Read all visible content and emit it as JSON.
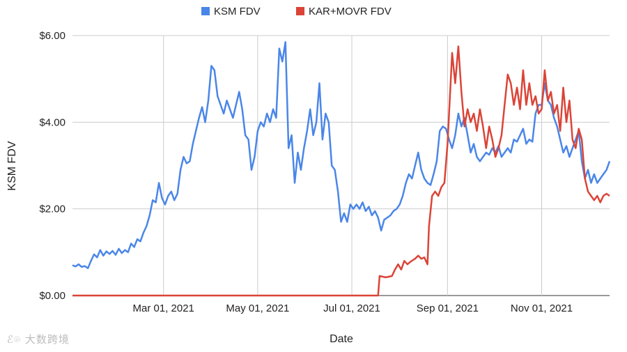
{
  "chart_data": {
    "type": "line",
    "title": "",
    "xlabel": "Date",
    "ylabel": "KSM FDV",
    "ylim": [
      0,
      6
    ],
    "y_ticks": [
      {
        "value": 0,
        "label": "$0.00"
      },
      {
        "value": 2,
        "label": "$2.00"
      },
      {
        "value": 4,
        "label": "$4.00"
      },
      {
        "value": 6,
        "label": "$6.00"
      }
    ],
    "xlim": [
      "2021-01-01",
      "2021-12-15"
    ],
    "x_ticks": [
      {
        "date": "2021-03-01",
        "label": "Mar 01, 2021"
      },
      {
        "date": "2021-05-01",
        "label": "May 01, 2021"
      },
      {
        "date": "2021-07-01",
        "label": "Jul 01, 2021"
      },
      {
        "date": "2021-09-01",
        "label": "Sep 01, 2021"
      },
      {
        "date": "2021-11-01",
        "label": "Nov 01, 2021"
      }
    ],
    "grid": true,
    "legend_position": "top",
    "series": [
      {
        "name": "KSM FDV",
        "color": "#4a86e8",
        "points": [
          [
            "2021-01-01",
            0.7
          ],
          [
            "2021-01-03",
            0.67
          ],
          [
            "2021-01-05",
            0.72
          ],
          [
            "2021-01-07",
            0.66
          ],
          [
            "2021-01-09",
            0.68
          ],
          [
            "2021-01-11",
            0.63
          ],
          [
            "2021-01-13",
            0.8
          ],
          [
            "2021-01-15",
            0.95
          ],
          [
            "2021-01-17",
            0.88
          ],
          [
            "2021-01-19",
            1.05
          ],
          [
            "2021-01-21",
            0.92
          ],
          [
            "2021-01-23",
            1.02
          ],
          [
            "2021-01-25",
            0.96
          ],
          [
            "2021-01-27",
            1.03
          ],
          [
            "2021-01-29",
            0.94
          ],
          [
            "2021-01-31",
            1.08
          ],
          [
            "2021-02-02",
            0.98
          ],
          [
            "2021-02-04",
            1.05
          ],
          [
            "2021-02-06",
            1.0
          ],
          [
            "2021-02-08",
            1.2
          ],
          [
            "2021-02-10",
            1.12
          ],
          [
            "2021-02-12",
            1.3
          ],
          [
            "2021-02-14",
            1.25
          ],
          [
            "2021-02-16",
            1.45
          ],
          [
            "2021-02-18",
            1.6
          ],
          [
            "2021-02-20",
            1.85
          ],
          [
            "2021-02-22",
            2.2
          ],
          [
            "2021-02-24",
            2.15
          ],
          [
            "2021-02-26",
            2.6
          ],
          [
            "2021-02-28",
            2.25
          ],
          [
            "2021-03-02",
            2.1
          ],
          [
            "2021-03-04",
            2.3
          ],
          [
            "2021-03-06",
            2.4
          ],
          [
            "2021-03-08",
            2.2
          ],
          [
            "2021-03-10",
            2.35
          ],
          [
            "2021-03-12",
            2.9
          ],
          [
            "2021-03-14",
            3.2
          ],
          [
            "2021-03-16",
            3.05
          ],
          [
            "2021-03-18",
            3.1
          ],
          [
            "2021-03-20",
            3.5
          ],
          [
            "2021-03-22",
            3.8
          ],
          [
            "2021-03-24",
            4.1
          ],
          [
            "2021-03-26",
            4.35
          ],
          [
            "2021-03-28",
            4.0
          ],
          [
            "2021-03-30",
            4.5
          ],
          [
            "2021-04-01",
            5.3
          ],
          [
            "2021-04-03",
            5.2
          ],
          [
            "2021-04-05",
            4.6
          ],
          [
            "2021-04-07",
            4.4
          ],
          [
            "2021-04-09",
            4.2
          ],
          [
            "2021-04-11",
            4.5
          ],
          [
            "2021-04-13",
            4.3
          ],
          [
            "2021-04-15",
            4.1
          ],
          [
            "2021-04-17",
            4.4
          ],
          [
            "2021-04-19",
            4.7
          ],
          [
            "2021-04-21",
            4.3
          ],
          [
            "2021-04-23",
            3.7
          ],
          [
            "2021-04-25",
            3.6
          ],
          [
            "2021-04-27",
            2.9
          ],
          [
            "2021-04-29",
            3.2
          ],
          [
            "2021-05-01",
            3.8
          ],
          [
            "2021-05-03",
            4.0
          ],
          [
            "2021-05-05",
            3.9
          ],
          [
            "2021-05-07",
            4.2
          ],
          [
            "2021-05-09",
            4.0
          ],
          [
            "2021-05-11",
            4.3
          ],
          [
            "2021-05-13",
            4.1
          ],
          [
            "2021-05-15",
            5.7
          ],
          [
            "2021-05-17",
            5.4
          ],
          [
            "2021-05-19",
            5.85
          ],
          [
            "2021-05-21",
            3.4
          ],
          [
            "2021-05-23",
            3.7
          ],
          [
            "2021-05-25",
            2.6
          ],
          [
            "2021-05-27",
            3.3
          ],
          [
            "2021-05-29",
            2.9
          ],
          [
            "2021-05-31",
            3.4
          ],
          [
            "2021-06-02",
            3.8
          ],
          [
            "2021-06-04",
            4.3
          ],
          [
            "2021-06-06",
            3.7
          ],
          [
            "2021-06-08",
            4.0
          ],
          [
            "2021-06-10",
            4.9
          ],
          [
            "2021-06-12",
            3.6
          ],
          [
            "2021-06-14",
            4.2
          ],
          [
            "2021-06-16",
            4.0
          ],
          [
            "2021-06-18",
            3.0
          ],
          [
            "2021-06-20",
            2.9
          ],
          [
            "2021-06-22",
            2.4
          ],
          [
            "2021-06-24",
            1.7
          ],
          [
            "2021-06-26",
            1.9
          ],
          [
            "2021-06-28",
            1.7
          ],
          [
            "2021-06-30",
            2.1
          ],
          [
            "2021-07-02",
            2.0
          ],
          [
            "2021-07-04",
            2.1
          ],
          [
            "2021-07-06",
            2.0
          ],
          [
            "2021-07-08",
            2.15
          ],
          [
            "2021-07-10",
            1.95
          ],
          [
            "2021-07-12",
            2.05
          ],
          [
            "2021-07-14",
            1.85
          ],
          [
            "2021-07-16",
            1.95
          ],
          [
            "2021-07-18",
            1.8
          ],
          [
            "2021-07-20",
            1.5
          ],
          [
            "2021-07-22",
            1.75
          ],
          [
            "2021-07-24",
            1.8
          ],
          [
            "2021-07-26",
            1.85
          ],
          [
            "2021-07-28",
            1.95
          ],
          [
            "2021-07-30",
            2.0
          ],
          [
            "2021-08-01",
            2.1
          ],
          [
            "2021-08-03",
            2.3
          ],
          [
            "2021-08-05",
            2.6
          ],
          [
            "2021-08-07",
            2.8
          ],
          [
            "2021-08-09",
            2.7
          ],
          [
            "2021-08-11",
            3.0
          ],
          [
            "2021-08-13",
            3.3
          ],
          [
            "2021-08-15",
            2.9
          ],
          [
            "2021-08-17",
            2.7
          ],
          [
            "2021-08-19",
            2.6
          ],
          [
            "2021-08-21",
            2.55
          ],
          [
            "2021-08-23",
            2.8
          ],
          [
            "2021-08-25",
            3.1
          ],
          [
            "2021-08-27",
            3.8
          ],
          [
            "2021-08-29",
            3.9
          ],
          [
            "2021-08-31",
            3.85
          ],
          [
            "2021-09-02",
            3.6
          ],
          [
            "2021-09-04",
            3.4
          ],
          [
            "2021-09-06",
            3.7
          ],
          [
            "2021-09-08",
            4.2
          ],
          [
            "2021-09-10",
            3.9
          ],
          [
            "2021-09-12",
            4.1
          ],
          [
            "2021-09-14",
            3.7
          ],
          [
            "2021-09-16",
            3.3
          ],
          [
            "2021-09-18",
            3.5
          ],
          [
            "2021-09-20",
            3.2
          ],
          [
            "2021-09-22",
            3.1
          ],
          [
            "2021-09-24",
            3.2
          ],
          [
            "2021-09-26",
            3.3
          ],
          [
            "2021-09-28",
            3.25
          ],
          [
            "2021-09-30",
            3.4
          ],
          [
            "2021-10-02",
            3.3
          ],
          [
            "2021-10-04",
            3.45
          ],
          [
            "2021-10-06",
            3.2
          ],
          [
            "2021-10-08",
            3.3
          ],
          [
            "2021-10-10",
            3.4
          ],
          [
            "2021-10-12",
            3.3
          ],
          [
            "2021-10-14",
            3.6
          ],
          [
            "2021-10-16",
            3.55
          ],
          [
            "2021-10-18",
            3.7
          ],
          [
            "2021-10-20",
            3.85
          ],
          [
            "2021-10-22",
            3.5
          ],
          [
            "2021-10-24",
            3.6
          ],
          [
            "2021-10-26",
            3.55
          ],
          [
            "2021-10-28",
            4.2
          ],
          [
            "2021-10-30",
            4.4
          ],
          [
            "2021-11-01",
            4.4
          ],
          [
            "2021-11-03",
            4.9
          ],
          [
            "2021-11-05",
            4.5
          ],
          [
            "2021-11-07",
            4.4
          ],
          [
            "2021-11-09",
            4.1
          ],
          [
            "2021-11-11",
            3.9
          ],
          [
            "2021-11-13",
            3.6
          ],
          [
            "2021-11-15",
            3.3
          ],
          [
            "2021-11-17",
            3.45
          ],
          [
            "2021-11-19",
            3.2
          ],
          [
            "2021-11-21",
            3.4
          ],
          [
            "2021-11-23",
            3.6
          ],
          [
            "2021-11-25",
            3.8
          ],
          [
            "2021-11-27",
            3.1
          ],
          [
            "2021-11-29",
            2.7
          ],
          [
            "2021-12-01",
            2.9
          ],
          [
            "2021-12-03",
            2.6
          ],
          [
            "2021-12-05",
            2.8
          ],
          [
            "2021-12-07",
            2.6
          ],
          [
            "2021-12-09",
            2.7
          ],
          [
            "2021-12-11",
            2.8
          ],
          [
            "2021-12-13",
            2.9
          ],
          [
            "2021-12-15",
            3.1
          ]
        ]
      },
      {
        "name": "KAR+MOVR FDV",
        "color": "#db4437",
        "points": [
          [
            "2021-01-01",
            0.0
          ],
          [
            "2021-07-18",
            0.0
          ],
          [
            "2021-07-19",
            0.45
          ],
          [
            "2021-07-23",
            0.42
          ],
          [
            "2021-07-27",
            0.45
          ],
          [
            "2021-07-29",
            0.6
          ],
          [
            "2021-07-31",
            0.72
          ],
          [
            "2021-08-02",
            0.6
          ],
          [
            "2021-08-04",
            0.8
          ],
          [
            "2021-08-06",
            0.72
          ],
          [
            "2021-08-08",
            0.78
          ],
          [
            "2021-08-11",
            0.85
          ],
          [
            "2021-08-13",
            0.92
          ],
          [
            "2021-08-15",
            0.85
          ],
          [
            "2021-08-17",
            0.88
          ],
          [
            "2021-08-19",
            0.72
          ],
          [
            "2021-08-20",
            1.6
          ],
          [
            "2021-08-22",
            2.3
          ],
          [
            "2021-08-24",
            2.4
          ],
          [
            "2021-08-26",
            2.3
          ],
          [
            "2021-08-28",
            2.5
          ],
          [
            "2021-08-30",
            2.6
          ],
          [
            "2021-09-01",
            3.5
          ],
          [
            "2021-09-04",
            5.6
          ],
          [
            "2021-09-06",
            4.9
          ],
          [
            "2021-09-08",
            5.75
          ],
          [
            "2021-09-10",
            4.7
          ],
          [
            "2021-09-12",
            3.9
          ],
          [
            "2021-09-14",
            4.3
          ],
          [
            "2021-09-16",
            4.0
          ],
          [
            "2021-09-18",
            4.2
          ],
          [
            "2021-09-20",
            3.8
          ],
          [
            "2021-09-22",
            4.3
          ],
          [
            "2021-09-24",
            3.9
          ],
          [
            "2021-09-26",
            3.4
          ],
          [
            "2021-09-28",
            3.9
          ],
          [
            "2021-09-30",
            3.6
          ],
          [
            "2021-10-02",
            3.2
          ],
          [
            "2021-10-04",
            3.4
          ],
          [
            "2021-10-06",
            3.7
          ],
          [
            "2021-10-08",
            4.4
          ],
          [
            "2021-10-10",
            5.1
          ],
          [
            "2021-10-12",
            4.9
          ],
          [
            "2021-10-14",
            4.4
          ],
          [
            "2021-10-16",
            4.8
          ],
          [
            "2021-10-18",
            4.3
          ],
          [
            "2021-10-20",
            5.2
          ],
          [
            "2021-10-22",
            4.4
          ],
          [
            "2021-10-24",
            4.9
          ],
          [
            "2021-10-26",
            4.4
          ],
          [
            "2021-10-28",
            4.6
          ],
          [
            "2021-10-30",
            4.2
          ],
          [
            "2021-11-01",
            4.3
          ],
          [
            "2021-11-03",
            5.2
          ],
          [
            "2021-11-05",
            4.5
          ],
          [
            "2021-11-07",
            4.7
          ],
          [
            "2021-11-09",
            4.2
          ],
          [
            "2021-11-11",
            4.4
          ],
          [
            "2021-11-13",
            3.8
          ],
          [
            "2021-11-15",
            4.8
          ],
          [
            "2021-11-17",
            4.0
          ],
          [
            "2021-11-19",
            4.5
          ],
          [
            "2021-11-21",
            3.6
          ],
          [
            "2021-11-23",
            3.4
          ],
          [
            "2021-11-25",
            3.85
          ],
          [
            "2021-11-27",
            3.6
          ],
          [
            "2021-11-29",
            2.7
          ],
          [
            "2021-12-01",
            2.4
          ],
          [
            "2021-12-03",
            2.3
          ],
          [
            "2021-12-05",
            2.2
          ],
          [
            "2021-12-07",
            2.3
          ],
          [
            "2021-12-09",
            2.15
          ],
          [
            "2021-12-11",
            2.3
          ],
          [
            "2021-12-13",
            2.35
          ],
          [
            "2021-12-15",
            2.3
          ]
        ]
      }
    ]
  },
  "watermark": {
    "icon": "brand-logo-icon",
    "text": "大数跨境"
  }
}
